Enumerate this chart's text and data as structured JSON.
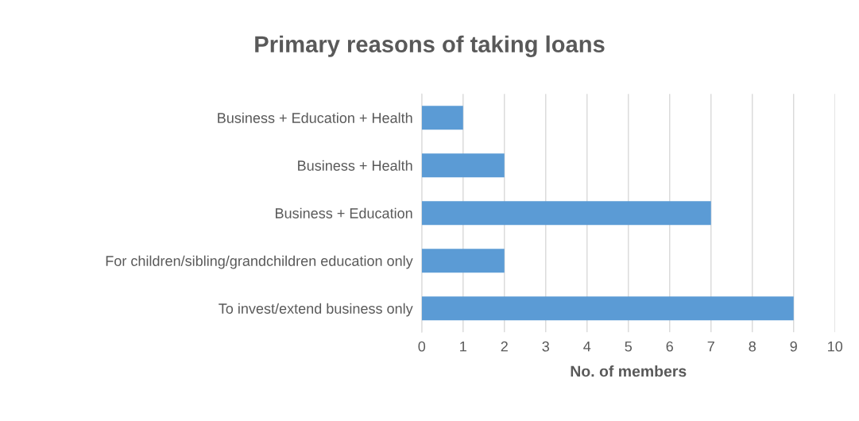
{
  "chart_data": {
    "type": "bar",
    "orientation": "horizontal",
    "title": "Primary reasons of taking loans",
    "xlabel": "No. of members",
    "categories": [
      "Business + Education + Health",
      "Business + Health",
      "Business + Education",
      "For children/sibling/grandchildren education only",
      "To invest/extend business only"
    ],
    "values": [
      1,
      2,
      7,
      2,
      9
    ],
    "color": "#5b9bd5",
    "xlim": [
      0,
      10
    ],
    "xticks": [
      0,
      1,
      2,
      3,
      4,
      5,
      6,
      7,
      8,
      9,
      10
    ],
    "grid": "x"
  }
}
